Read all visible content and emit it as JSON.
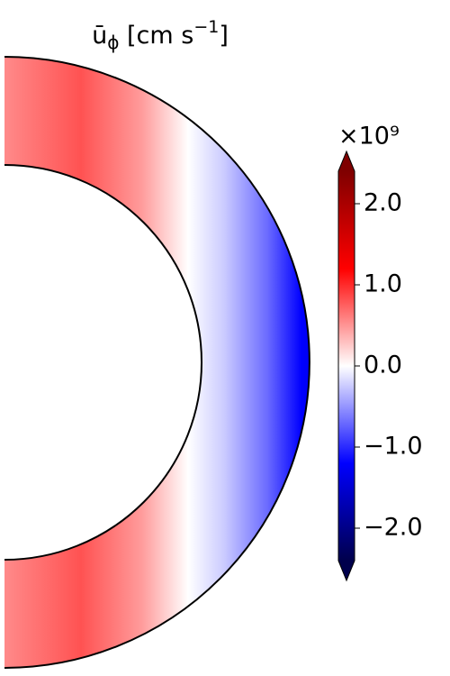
{
  "chart_data": {
    "type": "meridional-contour",
    "title": {
      "symbol": "ū",
      "subscript": "ϕ",
      "unit": "[cm s",
      "unit_exponent": "−1",
      "close": "]"
    },
    "colorbar": {
      "multiplier": "×10⁹",
      "clim": [
        -2.4,
        2.4
      ],
      "extend": "both",
      "colormap": "seismic",
      "ticks": [
        {
          "value": 2,
          "label": "2.0"
        },
        {
          "value": 1,
          "label": "1.0"
        },
        {
          "value": 0,
          "label": "0.0"
        },
        {
          "value": -1,
          "label": "−1.0"
        },
        {
          "value": -2,
          "label": "−2.0"
        }
      ]
    }
  }
}
